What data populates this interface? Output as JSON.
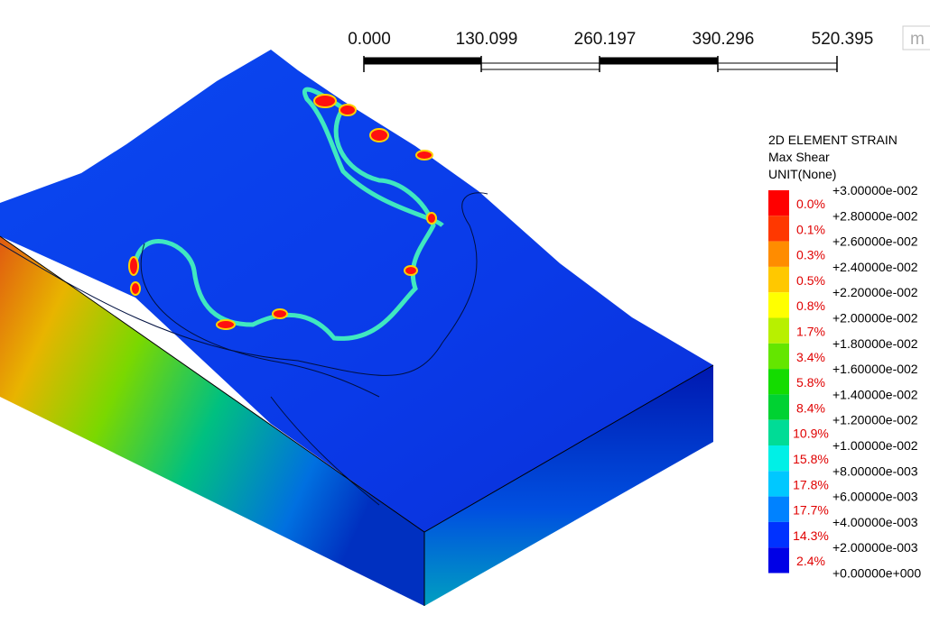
{
  "scale_bar": {
    "labels": [
      "0.000",
      "130.099",
      "260.197",
      "390.296",
      "520.395"
    ],
    "unit": "m"
  },
  "legend": {
    "title_lines": [
      "2D ELEMENT STRAIN",
      "Max Shear",
      "UNIT(None)"
    ],
    "value_labels": [
      "+3.00000e-002",
      "+2.80000e-002",
      "+2.60000e-002",
      "+2.40000e-002",
      "+2.20000e-002",
      "+2.00000e-002",
      "+1.80000e-002",
      "+1.60000e-002",
      "+1.40000e-002",
      "+1.20000e-002",
      "+1.00000e-002",
      "+8.00000e-003",
      "+6.00000e-003",
      "+4.00000e-003",
      "+2.00000e-003",
      "+0.00000e+000"
    ],
    "bands": [
      {
        "percent": "0.0%",
        "color": "#ff0000"
      },
      {
        "percent": "0.1%",
        "color": "#ff3800"
      },
      {
        "percent": "0.3%",
        "color": "#ff8c00"
      },
      {
        "percent": "0.5%",
        "color": "#ffc800"
      },
      {
        "percent": "0.8%",
        "color": "#ffff00"
      },
      {
        "percent": "1.7%",
        "color": "#b8f000"
      },
      {
        "percent": "3.4%",
        "color": "#64e600"
      },
      {
        "percent": "5.8%",
        "color": "#14dc00"
      },
      {
        "percent": "8.4%",
        "color": "#00d232"
      },
      {
        "percent": "10.9%",
        "color": "#00dc96"
      },
      {
        "percent": "15.8%",
        "color": "#00f0e6"
      },
      {
        "percent": "17.8%",
        "color": "#00c8ff"
      },
      {
        "percent": "17.7%",
        "color": "#0082ff"
      },
      {
        "percent": "14.3%",
        "color": "#0032ff"
      },
      {
        "percent": "2.4%",
        "color": "#0000e6"
      }
    ]
  }
}
